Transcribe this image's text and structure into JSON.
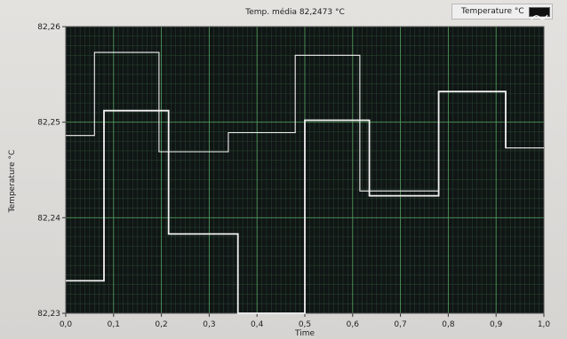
{
  "chart_data": {
    "type": "line",
    "title": "Temp. média 82,2473 °C",
    "xlabel": "Time",
    "ylabel": "Temperature °C",
    "xlim": [
      0.0,
      1.0
    ],
    "ylim": [
      82.23,
      82.26
    ],
    "grid": true,
    "legend_position": "top-right",
    "x_ticks": [
      "0,0",
      "0,1",
      "0,2",
      "0,3",
      "0,4",
      "0,5",
      "0,6",
      "0,7",
      "0,8",
      "0,9",
      "1,0"
    ],
    "y_ticks": [
      "82,23",
      "82,24",
      "82,25",
      "82,26"
    ],
    "colors": {
      "plot_bg": "#101515",
      "grid_major": "#4f9a5a",
      "grid_minor": "#26402c",
      "trace": "#f2f2f2"
    },
    "series": [
      {
        "name": "Temperature °C",
        "x": [
          0.0,
          0.06,
          0.06,
          0.195,
          0.195,
          0.34,
          0.34,
          0.48,
          0.48,
          0.615,
          0.615,
          0.78,
          0.78,
          0.92,
          0.92,
          1.0
        ],
        "y": [
          82.2486,
          82.2486,
          82.2573,
          82.2573,
          82.2469,
          82.2469,
          82.2489,
          82.2489,
          82.257,
          82.257,
          82.2428,
          82.2428,
          82.2532,
          82.2532,
          82.2473,
          82.2473
        ]
      },
      {
        "name": "",
        "x": [
          0.0,
          0.08,
          0.08,
          0.215,
          0.215,
          0.36,
          0.36,
          0.5,
          0.5,
          0.635,
          0.635,
          0.78,
          0.78,
          0.92,
          0.92
        ],
        "y": [
          82.2334,
          82.2334,
          82.2512,
          82.2512,
          82.2383,
          82.2383,
          82.23,
          82.23,
          82.2502,
          82.2502,
          82.2423,
          82.2423,
          82.2532,
          82.2532,
          82.2473
        ]
      }
    ]
  }
}
